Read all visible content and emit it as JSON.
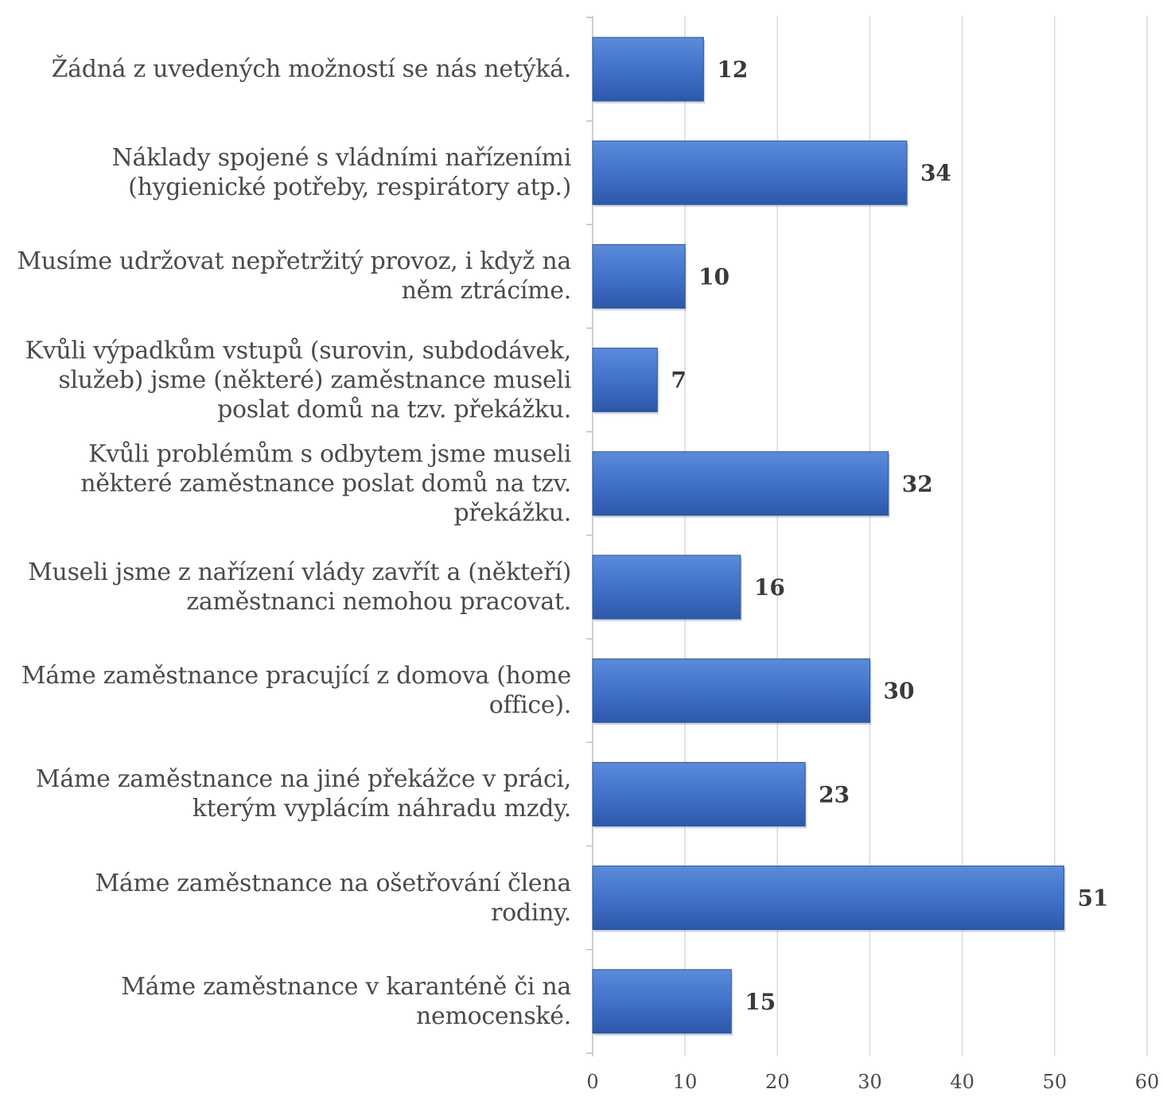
{
  "chart_data": {
    "type": "bar",
    "orientation": "horizontal",
    "categories": [
      "Žádná z uvedených možností se nás netýká.",
      "Náklady spojené s vládními nařízeními (hygienické potřeby, respirátory atp.)",
      "Musíme udržovat nepřetržitý provoz, i když na něm ztrácíme.",
      "Kvůli výpadkům vstupů (surovin, subdodávek, služeb) jsme (některé) zaměstnance museli poslat domů na tzv. překážku.",
      "Kvůli problémům s odbytem jsme museli některé zaměstnance poslat domů na tzv. překážku.",
      "Museli jsme z nařízení vlády zavřít a (někteří) zaměstnanci nemohou pracovat.",
      "Máme zaměstnance pracující z domova (home office).",
      "Máme zaměstnance na jiné překážce v práci, kterým vyplácím náhradu mzdy.",
      "Máme zaměstnance na ošetřování člena rodiny.",
      "Máme zaměstnance v karanténě či na nemocenské."
    ],
    "category_lines": [
      [
        "Žádná z uvedených možností se nás netýká."
      ],
      [
        "Náklady spojené s vládními nařízeními",
        "(hygienické potřeby, respirátory atp.)"
      ],
      [
        "Musíme udržovat nepřetržitý provoz, i když na",
        "něm ztrácíme."
      ],
      [
        "Kvůli výpadkům vstupů (surovin, subdodávek,",
        "služeb) jsme (některé) zaměstnance museli",
        "poslat domů na tzv. překážku."
      ],
      [
        "Kvůli problémům s odbytem jsme museli",
        "některé zaměstnance poslat domů na tzv.",
        "překážku."
      ],
      [
        "Museli jsme z nařízení vlády zavřít a (někteří)",
        "zaměstnanci nemohou pracovat."
      ],
      [
        "Máme zaměstnance pracující z domova (home",
        "office)."
      ],
      [
        "Máme zaměstnance na jiné překážce v práci,",
        "kterým vyplácím náhradu mzdy."
      ],
      [
        "Máme zaměstnance na ošetřování člena",
        "rodiny."
      ],
      [
        "Máme zaměstnance v karanténě či na",
        "nemocenské."
      ]
    ],
    "values": [
      12,
      34,
      10,
      7,
      32,
      16,
      30,
      23,
      51,
      15
    ],
    "xlim": [
      0,
      60
    ],
    "xticks": [
      0,
      10,
      20,
      30,
      40,
      50,
      60
    ],
    "grid": true,
    "data_labels": true,
    "bar_color": "#4472C4",
    "bar_color_dark": "#2F5597",
    "title": "",
    "xlabel": "",
    "ylabel": ""
  }
}
